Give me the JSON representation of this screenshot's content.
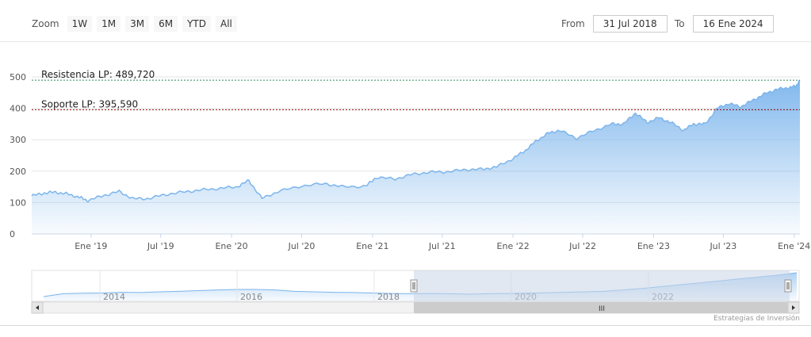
{
  "toolbar": {
    "zoom_label": "Zoom",
    "zoom_buttons": [
      "1W",
      "1M",
      "3M",
      "6M",
      "YTD",
      "All"
    ],
    "from_label": "From",
    "from_value": "31 Jul 2018",
    "to_label": "To",
    "to_value": "16 Ene 2024"
  },
  "credits": "Estrategias de Inversión",
  "colors": {
    "line": "#7cb5ec",
    "fill_top": "#7cb5ec",
    "resistance_line": "#2e8b57",
    "support_line": "#8b0000",
    "navigator_mask": "#c9d6e8"
  },
  "chart_data": {
    "type": "area",
    "ylim": [
      0,
      500
    ],
    "yticks": [
      0,
      100,
      200,
      300,
      400,
      500
    ],
    "x_range": [
      "2018-07-31",
      "2024-01-16"
    ],
    "x_ticks": [
      {
        "date": "2019-01-01",
        "label": "Ene '19"
      },
      {
        "date": "2019-07-01",
        "label": "Jul '19"
      },
      {
        "date": "2020-01-01",
        "label": "Ene '20"
      },
      {
        "date": "2020-07-01",
        "label": "Jul '20"
      },
      {
        "date": "2021-01-01",
        "label": "Ene '21"
      },
      {
        "date": "2021-07-01",
        "label": "Jul '21"
      },
      {
        "date": "2022-01-01",
        "label": "Ene '22"
      },
      {
        "date": "2022-07-01",
        "label": "Jul '22"
      },
      {
        "date": "2023-01-01",
        "label": "Ene '23"
      },
      {
        "date": "2023-07-01",
        "label": "Jul '23"
      },
      {
        "date": "2024-01-01",
        "label": "Ene '24"
      }
    ],
    "series": [
      {
        "values": [
          [
            "2018-07-31",
            121
          ],
          [
            "2018-09-01",
            130
          ],
          [
            "2018-10-01",
            133
          ],
          [
            "2018-11-01",
            127
          ],
          [
            "2018-12-01",
            117
          ],
          [
            "2018-12-24",
            106
          ],
          [
            "2019-02-01",
            122
          ],
          [
            "2019-03-15",
            135
          ],
          [
            "2019-04-20",
            112
          ],
          [
            "2019-06-01",
            113
          ],
          [
            "2019-07-15",
            126
          ],
          [
            "2019-09-01",
            134
          ],
          [
            "2019-10-15",
            140
          ],
          [
            "2019-12-01",
            145
          ],
          [
            "2020-01-15",
            150
          ],
          [
            "2020-02-15",
            170
          ],
          [
            "2020-03-20",
            113
          ],
          [
            "2020-05-01",
            135
          ],
          [
            "2020-07-01",
            153
          ],
          [
            "2020-09-01",
            160
          ],
          [
            "2020-10-15",
            150
          ],
          [
            "2020-12-15",
            152
          ],
          [
            "2021-01-10",
            180
          ],
          [
            "2021-03-01",
            175
          ],
          [
            "2021-04-15",
            190
          ],
          [
            "2021-06-01",
            197
          ],
          [
            "2021-07-15",
            198
          ],
          [
            "2021-09-01",
            205
          ],
          [
            "2021-10-15",
            206
          ],
          [
            "2021-11-20",
            214
          ],
          [
            "2022-01-01",
            240
          ],
          [
            "2022-02-01",
            265
          ],
          [
            "2022-03-01",
            295
          ],
          [
            "2022-04-01",
            320
          ],
          [
            "2022-05-01",
            330
          ],
          [
            "2022-06-15",
            305
          ],
          [
            "2022-08-01",
            330
          ],
          [
            "2022-09-15",
            350
          ],
          [
            "2022-10-15",
            350
          ],
          [
            "2022-11-15",
            385
          ],
          [
            "2022-12-15",
            355
          ],
          [
            "2023-01-15",
            370
          ],
          [
            "2023-02-15",
            355
          ],
          [
            "2023-03-20",
            330
          ],
          [
            "2023-04-15",
            350
          ],
          [
            "2023-05-15",
            350
          ],
          [
            "2023-06-15",
            400
          ],
          [
            "2023-07-15",
            415
          ],
          [
            "2023-08-15",
            405
          ],
          [
            "2023-09-15",
            425
          ],
          [
            "2023-10-15",
            445
          ],
          [
            "2023-11-15",
            460
          ],
          [
            "2023-12-15",
            465
          ],
          [
            "2024-01-05",
            470
          ],
          [
            "2024-01-16",
            488
          ]
        ]
      }
    ],
    "annotations": [
      {
        "label": "Resistencia LP: 489,720",
        "value": 489.72
      },
      {
        "label": "Soporte LP: 395,590",
        "value": 395.59
      }
    ],
    "navigator": {
      "labels": [
        "2014",
        "2016",
        "2018",
        "2020",
        "2022"
      ],
      "scrollbar_grip": "III"
    }
  }
}
